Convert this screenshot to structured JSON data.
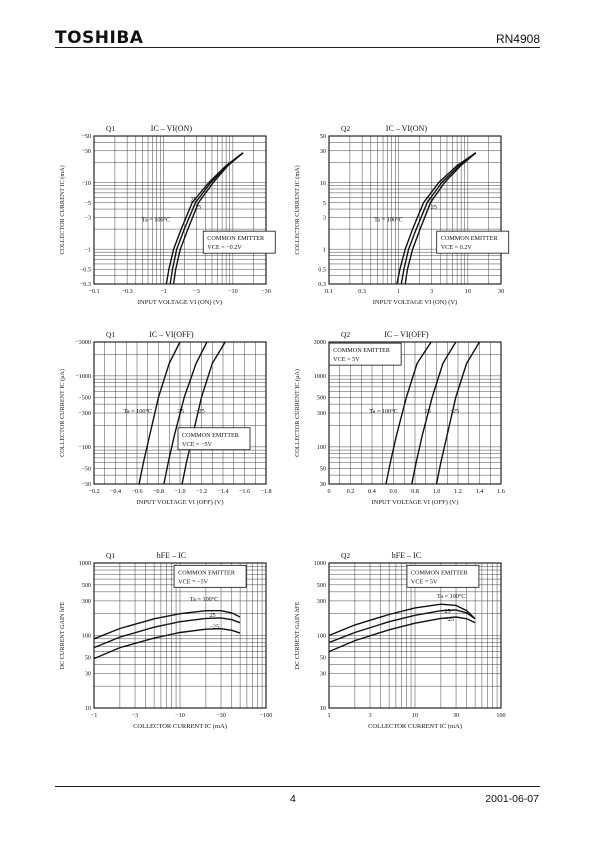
{
  "header": {
    "brand": "TOSHIBA",
    "part_number": "RN4908"
  },
  "footer": {
    "page": "4",
    "date": "2001-06-07"
  },
  "chart_data": [
    {
      "panel": "Q1",
      "title": "IC – VI(ON)",
      "type": "line",
      "xscale": "log",
      "xlim": [
        -0.1,
        -30
      ],
      "yscale": "log",
      "ylim": [
        -0.3,
        -50
      ],
      "xticks": [
        "−0.1",
        "−0.3",
        "−1",
        "−3",
        "−10",
        "−30"
      ],
      "yticks": [
        "−0.3",
        "−0.5",
        "−1",
        "−3",
        "−5",
        "−10",
        "−30",
        "−50"
      ],
      "xlabel": "INPUT VOLTAGE  VI (ON)  (V)",
      "ylabel": "COLLECTOR CURRENT  IC  (mA)",
      "note_lines": [
        "COMMON EMITTER",
        "VCE = −0.2V"
      ],
      "series": [
        {
          "name": "Ta = 100°C",
          "x": [
            -1.1,
            -1.2,
            -1.4,
            -1.8,
            -2.6,
            -4.5,
            -8,
            -14
          ],
          "y": [
            -0.3,
            -0.5,
            -1,
            -2,
            -5,
            -10,
            -18,
            -28
          ]
        },
        {
          "name": "25",
          "x": [
            -1.25,
            -1.35,
            -1.55,
            -2.0,
            -2.9,
            -4.8,
            -8.2,
            -14
          ],
          "y": [
            -0.3,
            -0.5,
            -1,
            -2,
            -5,
            -10,
            -18,
            -28
          ]
        },
        {
          "name": "−25",
          "x": [
            -1.4,
            -1.5,
            -1.75,
            -2.25,
            -3.2,
            -5.2,
            -8.5,
            -14
          ],
          "y": [
            -0.3,
            -0.5,
            -1,
            -2,
            -5,
            -10,
            -18,
            -28
          ]
        }
      ]
    },
    {
      "panel": "Q2",
      "title": "IC – VI(ON)",
      "type": "line",
      "xscale": "log",
      "xlim": [
        0.1,
        30
      ],
      "yscale": "log",
      "ylim": [
        0.3,
        50
      ],
      "xticks": [
        "0.1",
        "0.3",
        "1",
        "3",
        "10",
        "30"
      ],
      "yticks": [
        "0.3",
        "0.5",
        "1",
        "3",
        "5",
        "10",
        "30",
        "50"
      ],
      "xlabel": "INPUT VOLTAGE  VI (ON)  (V)",
      "ylabel": "COLLECTOR CURRENT  IC  (mA)",
      "note_lines": [
        "COMMON EMITTER",
        "VCE = 0.2V"
      ],
      "series": [
        {
          "name": "Ta = 100°C",
          "x": [
            0.95,
            1.05,
            1.25,
            1.6,
            2.3,
            3.8,
            7,
            13
          ],
          "y": [
            0.3,
            0.5,
            1,
            2,
            5,
            10,
            18,
            28
          ]
        },
        {
          "name": "25",
          "x": [
            1.1,
            1.2,
            1.4,
            1.8,
            2.6,
            4.2,
            7.5,
            13
          ],
          "y": [
            0.3,
            0.5,
            1,
            2,
            5,
            10,
            18,
            28
          ]
        },
        {
          "name": "−25",
          "x": [
            1.25,
            1.35,
            1.6,
            2.05,
            2.9,
            4.6,
            7.9,
            13
          ],
          "y": [
            0.3,
            0.5,
            1,
            2,
            5,
            10,
            18,
            28
          ]
        }
      ]
    },
    {
      "panel": "Q1",
      "title": "IC – VI(OFF)",
      "type": "line",
      "xscale": "linear",
      "xlim": [
        -0.2,
        -1.8
      ],
      "yscale": "log",
      "ylim": [
        -30,
        -3000
      ],
      "xticks": [
        "−0.2",
        "−0.4",
        "−0.6",
        "−0.8",
        "−1.0",
        "−1.2",
        "−1.4",
        "−1.6",
        "−1.8"
      ],
      "yticks": [
        "−30",
        "−50",
        "−100",
        "−300",
        "−500",
        "−1000",
        "−3000"
      ],
      "xlabel": "INPUT VOLTAGE  VI (OFF)  (V)",
      "ylabel": "COLLECTOR CURRENT  IC  (μA)",
      "note_lines": [
        "COMMON EMITTER",
        "VCE = −5V"
      ],
      "series": [
        {
          "name": "Ta = 100°C",
          "x": [
            -0.62,
            -0.66,
            -0.72,
            -0.8,
            -0.9,
            -1.0
          ],
          "y": [
            -30,
            -60,
            -150,
            -500,
            -1500,
            -3000
          ]
        },
        {
          "name": "25",
          "x": [
            -0.85,
            -0.89,
            -0.95,
            -1.04,
            -1.15,
            -1.25
          ],
          "y": [
            -30,
            -60,
            -150,
            -500,
            -1500,
            -3000
          ]
        },
        {
          "name": "−25",
          "x": [
            -1.02,
            -1.06,
            -1.12,
            -1.2,
            -1.3,
            -1.42
          ],
          "y": [
            -30,
            -60,
            -150,
            -500,
            -1500,
            -3000
          ]
        }
      ]
    },
    {
      "panel": "Q2",
      "title": "IC – VI(OFF)",
      "type": "line",
      "xscale": "linear",
      "xlim": [
        0,
        1.6
      ],
      "yscale": "log",
      "ylim": [
        30,
        3000
      ],
      "xticks": [
        "0",
        "0.2",
        "0.4",
        "0.6",
        "0.8",
        "1.0",
        "1.2",
        "1.4",
        "1.6"
      ],
      "yticks": [
        "30",
        "50",
        "100",
        "300",
        "500",
        "1000",
        "3000"
      ],
      "xlabel": "INPUT VOLTAGE  VI (OFF)  (V)",
      "ylabel": "COLLECTOR CURRENT  IC  (μA)",
      "note_lines": [
        "COMMON EMITTER",
        "VCE = 5V"
      ],
      "series": [
        {
          "name": "Ta = 100°C",
          "x": [
            0.53,
            0.57,
            0.63,
            0.72,
            0.82,
            0.95
          ],
          "y": [
            30,
            60,
            150,
            500,
            1500,
            3000
          ]
        },
        {
          "name": "25",
          "x": [
            0.77,
            0.81,
            0.87,
            0.96,
            1.06,
            1.18
          ],
          "y": [
            30,
            60,
            150,
            500,
            1500,
            3000
          ]
        },
        {
          "name": "−25",
          "x": [
            1.0,
            1.04,
            1.1,
            1.18,
            1.28,
            1.4
          ],
          "y": [
            30,
            60,
            150,
            500,
            1500,
            3000
          ]
        }
      ]
    },
    {
      "panel": "Q1",
      "title": "hFE – IC",
      "type": "line",
      "xscale": "log",
      "xlim": [
        -1,
        -100
      ],
      "yscale": "log",
      "ylim": [
        10,
        1000
      ],
      "xticks": [
        "−1",
        "−3",
        "−10",
        "−30",
        "−100"
      ],
      "yticks": [
        "10",
        "30",
        "50",
        "100",
        "300",
        "500",
        "1000"
      ],
      "xlabel": "COLLECTOR CURRENT  IC  (mA)",
      "ylabel": "DC CURRENT GAIN  hFE",
      "note_lines": [
        "COMMON EMITTER",
        "VCE = −5V"
      ],
      "series": [
        {
          "name": "Ta = 100°C",
          "x": [
            -1,
            -2,
            -5,
            -10,
            -20,
            -30,
            -40,
            -50
          ],
          "y": [
            90,
            125,
            170,
            200,
            220,
            220,
            205,
            180
          ]
        },
        {
          "name": "25",
          "x": [
            -1,
            -2,
            -5,
            -10,
            -20,
            -30,
            -40,
            -50
          ],
          "y": [
            68,
            95,
            130,
            155,
            172,
            175,
            165,
            150
          ]
        },
        {
          "name": "−25",
          "x": [
            -1,
            -2,
            -5,
            -10,
            -20,
            -30,
            -40,
            -50
          ],
          "y": [
            48,
            68,
            92,
            110,
            122,
            124,
            118,
            108
          ]
        }
      ]
    },
    {
      "panel": "Q2",
      "title": "hFE – IC",
      "type": "line",
      "xscale": "log",
      "xlim": [
        1,
        100
      ],
      "yscale": "log",
      "ylim": [
        10,
        1000
      ],
      "xticks": [
        "1",
        "3",
        "10",
        "30",
        "100"
      ],
      "yticks": [
        "10",
        "30",
        "50",
        "100",
        "300",
        "500",
        "1000"
      ],
      "xlabel": "COLLECTOR CURRENT  IC  (mA)",
      "ylabel": "DC CURRENT GAIN  hFE",
      "note_lines": [
        "COMMON EMITTER",
        "VCE = 5V"
      ],
      "series": [
        {
          "name": "Ta = 100°C",
          "x": [
            1,
            2,
            5,
            10,
            20,
            30,
            40,
            50
          ],
          "y": [
            100,
            140,
            195,
            240,
            270,
            260,
            220,
            170
          ]
        },
        {
          "name": "25",
          "x": [
            1,
            2,
            5,
            10,
            20,
            30,
            40,
            50
          ],
          "y": [
            80,
            110,
            155,
            190,
            220,
            225,
            205,
            170
          ]
        },
        {
          "name": "−25",
          "x": [
            1,
            2,
            5,
            10,
            20,
            30,
            40,
            50
          ],
          "y": [
            60,
            85,
            120,
            148,
            172,
            180,
            170,
            150
          ]
        }
      ]
    }
  ]
}
